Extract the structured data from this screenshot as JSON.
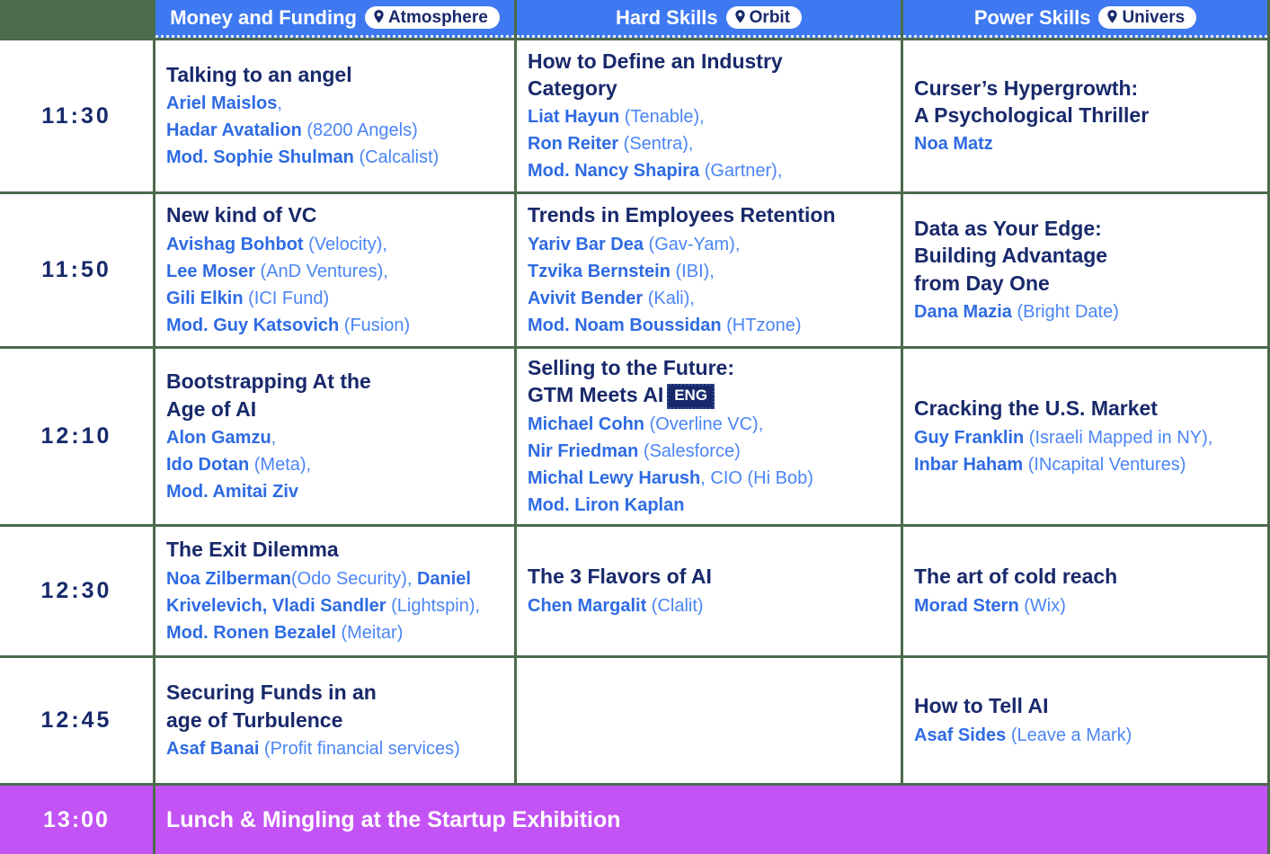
{
  "colors": {
    "header_blue": "#3E79F2",
    "border_green": "#4C6B4C",
    "title_navy": "#18296B",
    "name_blue": "#2E6BE3",
    "detail_blue": "#4A85F5",
    "lunch_purple": "#C353F5"
  },
  "header": {
    "tracks": [
      {
        "label": "Money and Funding",
        "location": "Atmosphere"
      },
      {
        "label": "Hard Skills",
        "location": "Orbit"
      },
      {
        "label": "Power Skills",
        "location": "Univers"
      }
    ]
  },
  "schedule": {
    "rows": [
      {
        "time": "11:30",
        "cells": [
          {
            "title_lines": [
              "Talking to an angel"
            ],
            "speakers": [
              [
                {
                  "t": "Ariel Maislos",
                  "b": true
                },
                {
                  "t": ",",
                  "b": false
                }
              ],
              [
                {
                  "t": "Hadar Avatalion",
                  "b": true
                },
                {
                  "t": " (8200 Angels)",
                  "b": false
                }
              ],
              [
                {
                  "t": "Mod. Sophie Shulman",
                  "b": true
                },
                {
                  "t": " (Calcalist)",
                  "b": false
                }
              ]
            ]
          },
          {
            "title_lines": [
              "How to Define an Industry",
              "Category"
            ],
            "speakers": [
              [
                {
                  "t": "Liat Hayun",
                  "b": true
                },
                {
                  "t": " (Tenable),",
                  "b": false
                }
              ],
              [
                {
                  "t": "Ron Reiter",
                  "b": true
                },
                {
                  "t": " (Sentra),",
                  "b": false
                }
              ],
              [
                {
                  "t": "Mod. Nancy Shapira",
                  "b": true
                },
                {
                  "t": " (Gartner),",
                  "b": false
                }
              ]
            ]
          },
          {
            "title_lines": [
              "Curser’s Hypergrowth:",
              "A Psychological Thriller"
            ],
            "speakers": [
              [
                {
                  "t": "Noa Matz",
                  "b": true
                }
              ]
            ]
          }
        ]
      },
      {
        "time": "11:50",
        "cells": [
          {
            "title_lines": [
              "New kind of VC"
            ],
            "speakers": [
              [
                {
                  "t": "Avishag Bohbot",
                  "b": true
                },
                {
                  "t": " (Velocity),",
                  "b": false
                }
              ],
              [
                {
                  "t": "Lee Moser",
                  "b": true
                },
                {
                  "t": " (AnD Ventures),",
                  "b": false
                }
              ],
              [
                {
                  "t": "Gili Elkin",
                  "b": true
                },
                {
                  "t": " (ICI Fund)",
                  "b": false
                }
              ],
              [
                {
                  "t": "Mod. Guy Katsovich",
                  "b": true
                },
                {
                  "t": " (Fusion)",
                  "b": false
                }
              ]
            ]
          },
          {
            "title_lines": [
              "Trends in Employees Retention"
            ],
            "speakers": [
              [
                {
                  "t": "Yariv Bar Dea",
                  "b": true
                },
                {
                  "t": " (Gav-Yam),",
                  "b": false
                }
              ],
              [
                {
                  "t": "Tzvika Bernstein",
                  "b": true
                },
                {
                  "t": " (IBI),",
                  "b": false
                }
              ],
              [
                {
                  "t": "Avivit Bender",
                  "b": true
                },
                {
                  "t": " (Kali),",
                  "b": false
                }
              ],
              [
                {
                  "t": "Mod. Noam Boussidan",
                  "b": true
                },
                {
                  "t": " (HTzone)",
                  "b": false
                }
              ]
            ]
          },
          {
            "title_lines": [
              "Data as Your Edge:",
              "Building Advantage",
              "from Day One"
            ],
            "speakers": [
              [
                {
                  "t": "Dana Mazia",
                  "b": true
                },
                {
                  "t": " (Bright Date)",
                  "b": false
                }
              ]
            ]
          }
        ]
      },
      {
        "time": "12:10",
        "cells": [
          {
            "title_lines": [
              "Bootstrapping At the",
              "Age of AI"
            ],
            "speakers": [
              [
                {
                  "t": "Alon Gamzu",
                  "b": true
                },
                {
                  "t": ",",
                  "b": false
                }
              ],
              [
                {
                  "t": "Ido Dotan",
                  "b": true
                },
                {
                  "t": " (Meta),",
                  "b": false
                }
              ],
              [
                {
                  "t": "Mod. Amitai Ziv",
                  "b": true
                }
              ]
            ]
          },
          {
            "title_lines": [
              "Selling to the Future:",
              "GTM Meets AI"
            ],
            "badge": "ENG",
            "speakers": [
              [
                {
                  "t": "Michael Cohn",
                  "b": true
                },
                {
                  "t": " (Overline VC),",
                  "b": false
                }
              ],
              [
                {
                  "t": "Nir Friedman",
                  "b": true
                },
                {
                  "t": " (Salesforce)",
                  "b": false
                }
              ],
              [
                {
                  "t": "Michal Lewy Harush",
                  "b": true
                },
                {
                  "t": ", CIO (Hi Bob)",
                  "b": false
                }
              ],
              [
                {
                  "t": "Mod. Liron Kaplan",
                  "b": true
                }
              ]
            ]
          },
          {
            "title_lines": [
              "Cracking the U.S. Market"
            ],
            "speakers": [
              [
                {
                  "t": "Guy Franklin",
                  "b": true
                },
                {
                  "t": " (Israeli Mapped in NY),",
                  "b": false
                }
              ],
              [
                {
                  "t": "Inbar Haham",
                  "b": true
                },
                {
                  "t": " (INcapital Ventures)",
                  "b": false
                }
              ]
            ]
          }
        ]
      },
      {
        "time": "12:30",
        "cells": [
          {
            "title_lines": [
              "The Exit Dilemma"
            ],
            "speakers": [
              [
                {
                  "t": "Noa Zilberman",
                  "b": true
                },
                {
                  "t": "(Odo Security), ",
                  "b": false
                },
                {
                  "t": "Daniel Krivelevich, Vladi Sandler",
                  "b": true
                },
                {
                  "t": " (Lightspin),",
                  "b": false
                }
              ],
              [
                {
                  "t": "Mod. Ronen Bezalel",
                  "b": true
                },
                {
                  "t": " (Meitar)",
                  "b": false
                }
              ]
            ]
          },
          {
            "title_lines": [
              "The 3 Flavors of AI"
            ],
            "speakers": [
              [
                {
                  "t": "Chen Margalit",
                  "b": true
                },
                {
                  "t": " (Clalit)",
                  "b": false
                }
              ]
            ]
          },
          {
            "title_lines": [
              "The art of cold reach"
            ],
            "speakers": [
              [
                {
                  "t": "Morad Stern",
                  "b": true
                },
                {
                  "t": " (Wix)",
                  "b": false
                }
              ]
            ]
          }
        ]
      },
      {
        "time": "12:45",
        "cells": [
          {
            "title_lines": [
              "Securing Funds in an",
              "age of Turbulence"
            ],
            "speakers": [
              [
                {
                  "t": "Asaf Banai",
                  "b": true
                },
                {
                  "t": " (Profit financial services)",
                  "b": false
                }
              ]
            ]
          },
          null,
          {
            "title_lines": [
              "How to Tell AI"
            ],
            "speakers": [
              [
                {
                  "t": "Asaf Sides",
                  "b": true
                },
                {
                  "t": " (Leave a Mark)",
                  "b": false
                }
              ]
            ]
          }
        ]
      }
    ],
    "lunch": {
      "time": "13:00",
      "label": "Lunch & Mingling at the Startup Exhibition"
    }
  }
}
